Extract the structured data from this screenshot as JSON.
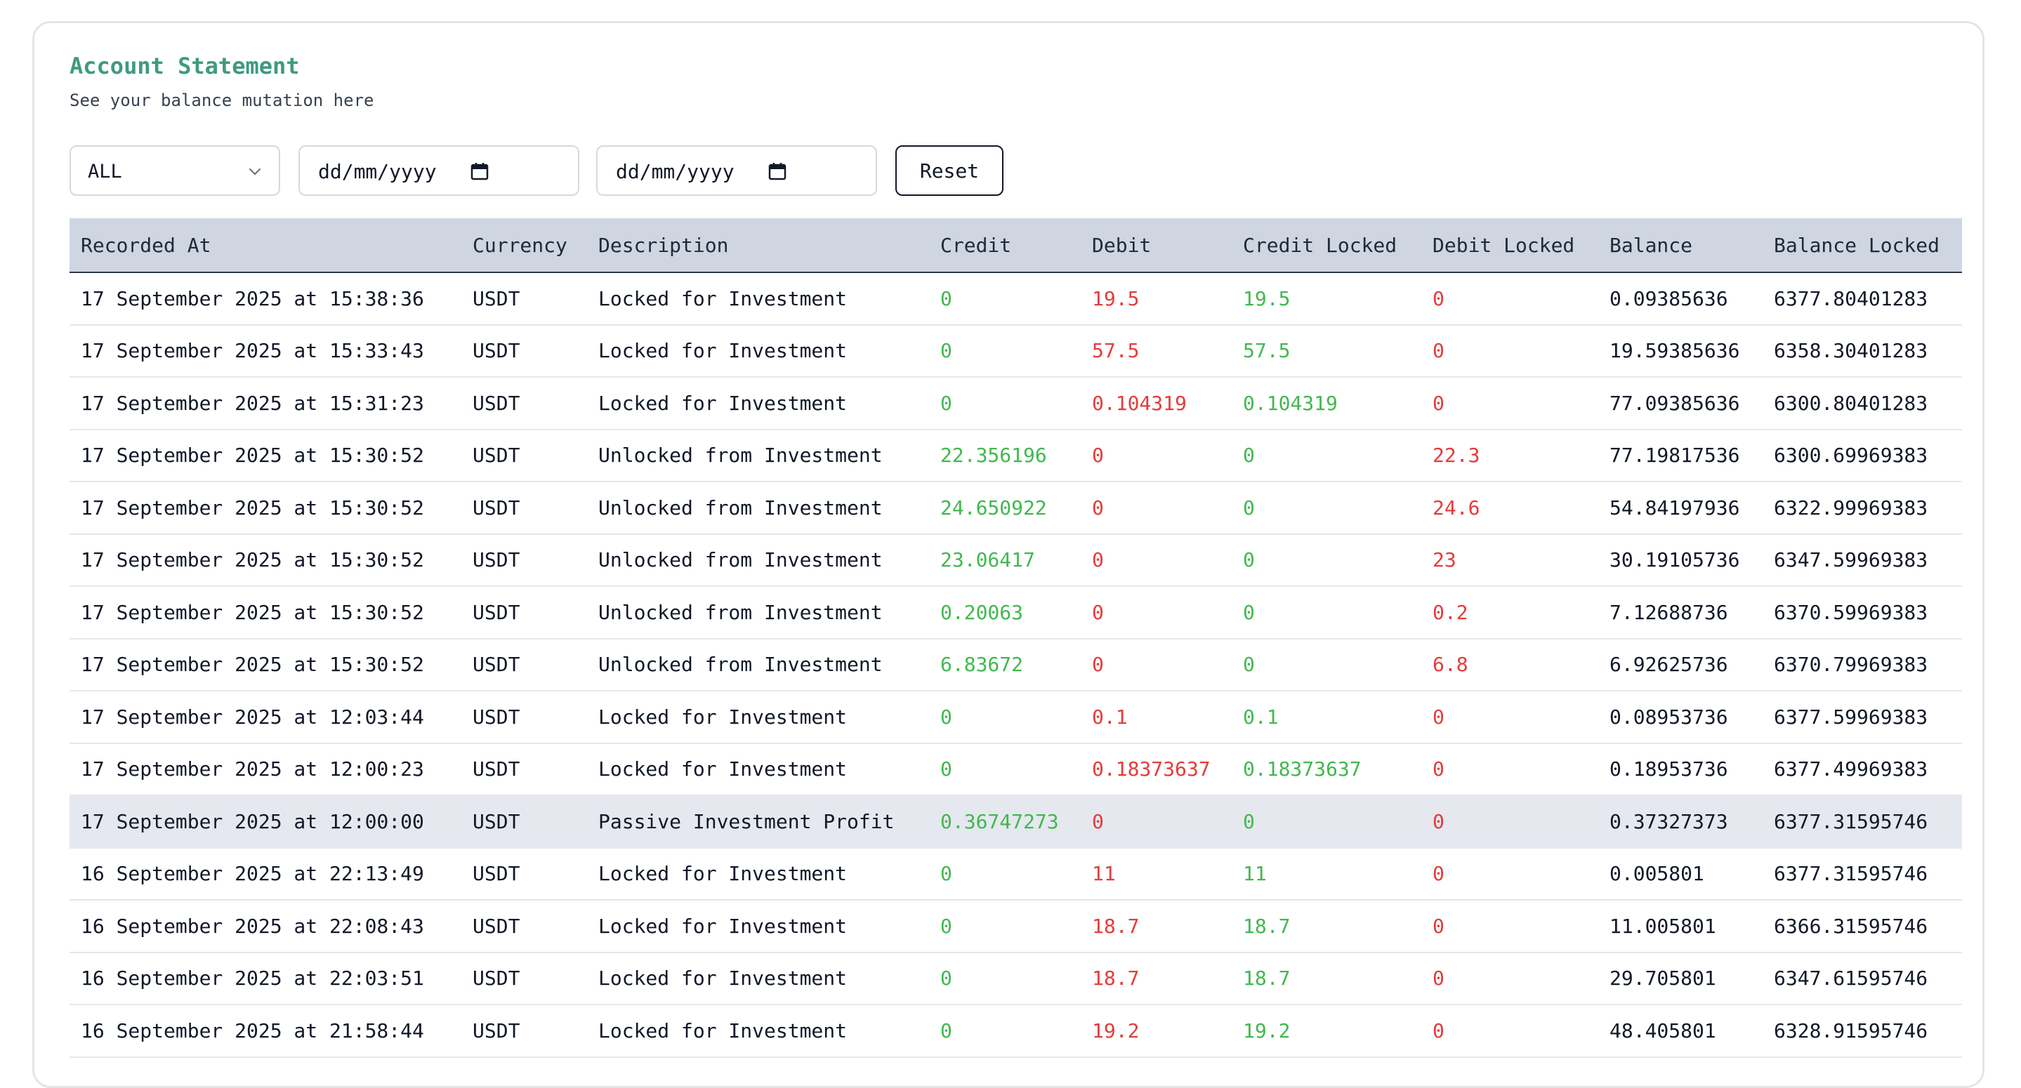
{
  "header": {
    "title": "Account Statement",
    "subtitle": "See your balance mutation here"
  },
  "filters": {
    "type_selected": "ALL",
    "date_from_placeholder": "dd/mm/yyyy",
    "date_to_placeholder": "dd/mm/yyyy",
    "reset_label": "Reset"
  },
  "colors": {
    "accent": "#3f9a80",
    "credit": "#41b84f",
    "debit": "#e53b3b",
    "header_bg": "#cfd5e1"
  },
  "table": {
    "columns": [
      "Recorded At",
      "Currency",
      "Description",
      "Credit",
      "Debit",
      "Credit Locked",
      "Debit Locked",
      "Balance",
      "Balance Locked"
    ],
    "rows": [
      [
        "17 September 2025 at 15:38:36",
        "USDT",
        "Locked for Investment",
        "0",
        "19.5",
        "19.5",
        "0",
        "0.09385636",
        "6377.80401283"
      ],
      [
        "17 September 2025 at 15:33:43",
        "USDT",
        "Locked for Investment",
        "0",
        "57.5",
        "57.5",
        "0",
        "19.59385636",
        "6358.30401283"
      ],
      [
        "17 September 2025 at 15:31:23",
        "USDT",
        "Locked for Investment",
        "0",
        "0.104319",
        "0.104319",
        "0",
        "77.09385636",
        "6300.80401283"
      ],
      [
        "17 September 2025 at 15:30:52",
        "USDT",
        "Unlocked from Investment",
        "22.356196",
        "0",
        "0",
        "22.3",
        "77.19817536",
        "6300.69969383"
      ],
      [
        "17 September 2025 at 15:30:52",
        "USDT",
        "Unlocked from Investment",
        "24.650922",
        "0",
        "0",
        "24.6",
        "54.84197936",
        "6322.99969383"
      ],
      [
        "17 September 2025 at 15:30:52",
        "USDT",
        "Unlocked from Investment",
        "23.06417",
        "0",
        "0",
        "23",
        "30.19105736",
        "6347.59969383"
      ],
      [
        "17 September 2025 at 15:30:52",
        "USDT",
        "Unlocked from Investment",
        "0.20063",
        "0",
        "0",
        "0.2",
        "7.12688736",
        "6370.59969383"
      ],
      [
        "17 September 2025 at 15:30:52",
        "USDT",
        "Unlocked from Investment",
        "6.83672",
        "0",
        "0",
        "6.8",
        "6.92625736",
        "6370.79969383"
      ],
      [
        "17 September 2025 at 12:03:44",
        "USDT",
        "Locked for Investment",
        "0",
        "0.1",
        "0.1",
        "0",
        "0.08953736",
        "6377.59969383"
      ],
      [
        "17 September 2025 at 12:00:23",
        "USDT",
        "Locked for Investment",
        "0",
        "0.18373637",
        "0.18373637",
        "0",
        "0.18953736",
        "6377.49969383"
      ],
      [
        "17 September 2025 at 12:00:00",
        "USDT",
        "Passive Investment Profit",
        "0.36747273",
        "0",
        "0",
        "0",
        "0.37327373",
        "6377.31595746"
      ],
      [
        "16 September 2025 at 22:13:49",
        "USDT",
        "Locked for Investment",
        "0",
        "11",
        "11",
        "0",
        "0.005801",
        "6377.31595746"
      ],
      [
        "16 September 2025 at 22:08:43",
        "USDT",
        "Locked for Investment",
        "0",
        "18.7",
        "18.7",
        "0",
        "11.005801",
        "6366.31595746"
      ],
      [
        "16 September 2025 at 22:03:51",
        "USDT",
        "Locked for Investment",
        "0",
        "18.7",
        "18.7",
        "0",
        "29.705801",
        "6347.61595746"
      ],
      [
        "16 September 2025 at 21:58:44",
        "USDT",
        "Locked for Investment",
        "0",
        "19.2",
        "19.2",
        "0",
        "48.405801",
        "6328.91595746"
      ]
    ],
    "highlighted_row": 10
  }
}
